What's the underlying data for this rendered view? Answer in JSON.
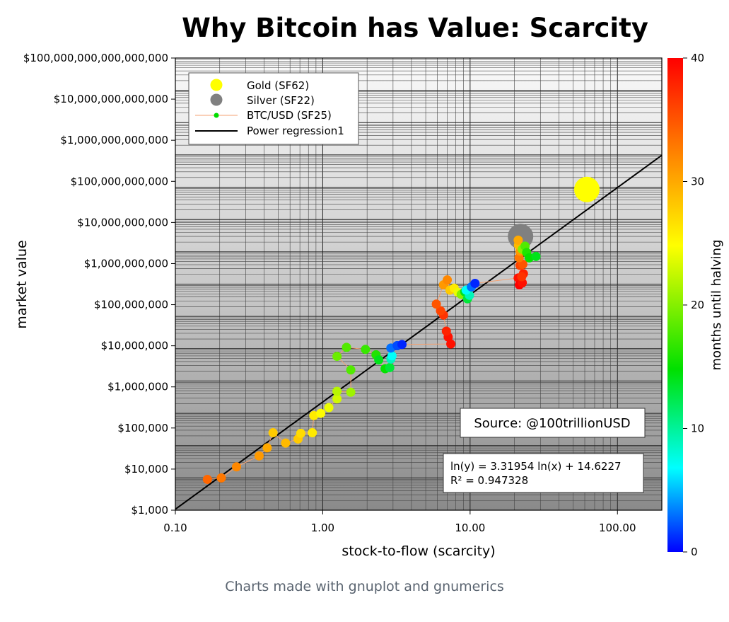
{
  "chart_data": {
    "type": "scatter",
    "title": "Why Bitcoin has Value: Scarcity",
    "xlabel": "stock-to-flow (scarcity)",
    "ylabel": "market value",
    "x_scale": "log",
    "y_scale": "log",
    "xlim": [
      0.1,
      200
    ],
    "ylim": [
      1000,
      100000000000000000
    ],
    "x_ticks": [
      "0.10",
      "1.00",
      "10.00",
      "100.00"
    ],
    "y_ticks": [
      "$1,000",
      "$10,000",
      "$100,000",
      "$1,000,000",
      "$10,000,000",
      "$100,000,000",
      "$1,000,000,000",
      "$10,000,000,000",
      "$100,000,000,000",
      "$1,000,000,000,000",
      "$10,000,000,000,000",
      "$100,000,000,000,000,000"
    ],
    "grid": true,
    "legend_position": "top-left",
    "legend": [
      {
        "label": "Gold (SF62)",
        "marker": "circle",
        "color": "#ffff00"
      },
      {
        "label": "Silver (SF22)",
        "marker": "circle",
        "color": "#808080"
      },
      {
        "label": "BTC/USD (SF25)",
        "marker": "line-dot",
        "color": "#00dd00",
        "line_color": "#f4a070"
      },
      {
        "label": "Power regression1",
        "marker": "line",
        "color": "#000000"
      }
    ],
    "colorbar": {
      "label": "months until halving",
      "min": 0,
      "max": 40,
      "ticks": [
        "0",
        "10",
        "20",
        "30",
        "40"
      ]
    },
    "annotations": {
      "source": "Source: @100trillionUSD",
      "equation": "ln(y) = 3.31954 ln(x) + 14.6227",
      "r_squared": "R² = 0.947328"
    },
    "regression": {
      "slope": 3.31954,
      "intercept": 14.6227
    },
    "series": [
      {
        "name": "Gold (SF62)",
        "points": [
          {
            "x": 62,
            "y": 8500000000000
          }
        ],
        "color": "#ffff00"
      },
      {
        "name": "Silver (SF22)",
        "points": [
          {
            "x": 22,
            "y": 300000000000
          }
        ],
        "color": "#808080"
      },
      {
        "name": "BTC/USD (SF25)",
        "points": [
          {
            "x": 0.165,
            "y": 9000,
            "m": 34
          },
          {
            "x": 0.205,
            "y": 10000,
            "m": 33
          },
          {
            "x": 0.26,
            "y": 22000,
            "m": 32
          },
          {
            "x": 0.37,
            "y": 48000,
            "m": 31
          },
          {
            "x": 0.42,
            "y": 85000,
            "m": 30
          },
          {
            "x": 0.46,
            "y": 250000,
            "m": 28
          },
          {
            "x": 0.56,
            "y": 120000,
            "m": 29
          },
          {
            "x": 0.68,
            "y": 160000,
            "m": 28
          },
          {
            "x": 0.71,
            "y": 240000,
            "m": 27
          },
          {
            "x": 0.85,
            "y": 250000,
            "m": 26
          },
          {
            "x": 0.87,
            "y": 850000,
            "m": 26
          },
          {
            "x": 0.97,
            "y": 1000000,
            "m": 25
          },
          {
            "x": 1.1,
            "y": 1500000,
            "m": 24
          },
          {
            "x": 1.25,
            "y": 2800000,
            "m": 23
          },
          {
            "x": 1.25,
            "y": 4800000,
            "m": 22
          },
          {
            "x": 1.55,
            "y": 4500000,
            "m": 21
          },
          {
            "x": 1.55,
            "y": 22000000,
            "m": 18
          },
          {
            "x": 1.25,
            "y": 58000000,
            "m": 19
          },
          {
            "x": 1.45,
            "y": 110000000,
            "m": 18
          },
          {
            "x": 1.95,
            "y": 95000000,
            "m": 17
          },
          {
            "x": 2.3,
            "y": 65000000,
            "m": 16
          },
          {
            "x": 2.4,
            "y": 45000000,
            "m": 14
          },
          {
            "x": 2.65,
            "y": 24000000,
            "m": 15
          },
          {
            "x": 2.85,
            "y": 26000000,
            "m": 13
          },
          {
            "x": 2.9,
            "y": 48000000,
            "m": 9
          },
          {
            "x": 2.95,
            "y": 60000000,
            "m": 7
          },
          {
            "x": 2.9,
            "y": 105000000,
            "m": 3
          },
          {
            "x": 3.2,
            "y": 125000000,
            "m": 2
          },
          {
            "x": 3.45,
            "y": 135000000,
            "m": 1
          },
          {
            "x": 7.4,
            "y": 140000000,
            "m": 39
          },
          {
            "x": 7.1,
            "y": 230000000,
            "m": 39
          },
          {
            "x": 6.9,
            "y": 350000000,
            "m": 38
          },
          {
            "x": 6.6,
            "y": 1100000000,
            "m": 37
          },
          {
            "x": 6.3,
            "y": 1500000000,
            "m": 36
          },
          {
            "x": 5.9,
            "y": 2400000000,
            "m": 35
          },
          {
            "x": 6.6,
            "y": 9500000000,
            "m": 31
          },
          {
            "x": 7.0,
            "y": 13500000000,
            "m": 32
          },
          {
            "x": 7.3,
            "y": 6500000000,
            "m": 28
          },
          {
            "x": 7.8,
            "y": 7500000000,
            "m": 26
          },
          {
            "x": 8.3,
            "y": 5500000000,
            "m": 24
          },
          {
            "x": 8.7,
            "y": 4800000000,
            "m": 20
          },
          {
            "x": 9.2,
            "y": 5800000000,
            "m": 14
          },
          {
            "x": 9.6,
            "y": 3500000000,
            "m": 13
          },
          {
            "x": 9.9,
            "y": 4500000000,
            "m": 9
          },
          {
            "x": 9.4,
            "y": 6500000000,
            "m": 7
          },
          {
            "x": 10.2,
            "y": 8200000000,
            "m": 3
          },
          {
            "x": 10.8,
            "y": 10500000000,
            "m": 1
          },
          {
            "x": 21.2,
            "y": 15500000000,
            "m": 39
          },
          {
            "x": 21.6,
            "y": 9500000000,
            "m": 40
          },
          {
            "x": 22.6,
            "y": 11000000000,
            "m": 39
          },
          {
            "x": 23.0,
            "y": 21000000000,
            "m": 38
          },
          {
            "x": 22.4,
            "y": 17000000000,
            "m": 37
          },
          {
            "x": 21.8,
            "y": 38000000000,
            "m": 36
          },
          {
            "x": 22.8,
            "y": 41000000000,
            "m": 35
          },
          {
            "x": 21.5,
            "y": 66000000000,
            "m": 33
          },
          {
            "x": 21.8,
            "y": 105000000000,
            "m": 31
          },
          {
            "x": 21.3,
            "y": 160000000000,
            "m": 29
          },
          {
            "x": 21.2,
            "y": 230000000000,
            "m": 30
          },
          {
            "x": 22.6,
            "y": 120000000000,
            "m": 20
          },
          {
            "x": 23.6,
            "y": 150000000000,
            "m": 18
          },
          {
            "x": 24.2,
            "y": 95000000000,
            "m": 16
          },
          {
            "x": 25.2,
            "y": 65000000000,
            "m": 15
          },
          {
            "x": 28.0,
            "y": 72000000000,
            "m": 14
          }
        ]
      }
    ]
  },
  "caption": "Charts made with gnuplot and gnumerics"
}
